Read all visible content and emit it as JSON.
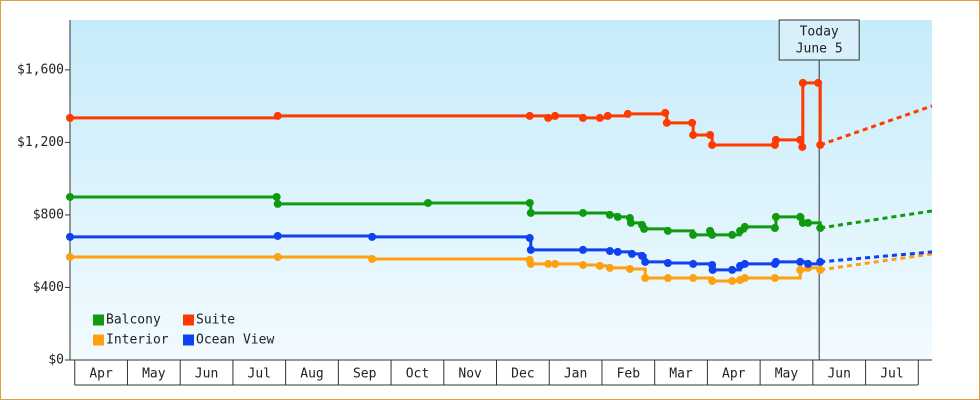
{
  "chart_data": {
    "type": "step-line",
    "xlim": [
      -0.09,
      16.26
    ],
    "ylim": [
      0,
      1875
    ],
    "yticks": [
      {
        "value": 0,
        "label": "$0"
      },
      {
        "value": 400,
        "label": "$400"
      },
      {
        "value": 800,
        "label": "$800"
      },
      {
        "value": 1200,
        "label": "$1,200"
      },
      {
        "value": 1600,
        "label": "$1,600"
      }
    ],
    "xticks": [
      {
        "value": 0.5,
        "label": "Apr"
      },
      {
        "value": 1.5,
        "label": "May"
      },
      {
        "value": 2.5,
        "label": "Jun"
      },
      {
        "value": 3.5,
        "label": "Jul"
      },
      {
        "value": 4.5,
        "label": "Aug"
      },
      {
        "value": 5.5,
        "label": "Sep"
      },
      {
        "value": 6.5,
        "label": "Oct"
      },
      {
        "value": 7.5,
        "label": "Nov"
      },
      {
        "value": 8.5,
        "label": "Dec"
      },
      {
        "value": 9.5,
        "label": "Jan"
      },
      {
        "value": 10.5,
        "label": "Feb"
      },
      {
        "value": 11.5,
        "label": "Mar"
      },
      {
        "value": 12.5,
        "label": "Apr"
      },
      {
        "value": 13.5,
        "label": "May"
      },
      {
        "value": 14.5,
        "label": "Jun"
      },
      {
        "value": 15.5,
        "label": "Jul"
      }
    ],
    "annotation": {
      "x": 14.12,
      "lines": [
        "Today",
        "June 5"
      ]
    },
    "series": [
      {
        "name": "Balcony",
        "color": "#109a10",
        "x": [
          -0.09,
          3.83,
          3.85,
          6.7,
          8.63,
          8.65,
          9.64,
          10.15,
          10.3,
          10.53,
          10.55,
          10.76,
          10.8,
          11.25,
          11.73,
          12.05,
          12.09,
          12.47,
          12.62,
          12.71,
          13.28,
          13.3,
          13.76,
          13.81,
          13.91,
          14.14
        ],
        "values": [
          899,
          899,
          861,
          866,
          866,
          811,
          811,
          800,
          789,
          783,
          756,
          745,
          723,
          712,
          690,
          712,
          690,
          690,
          712,
          734,
          728,
          789,
          789,
          756,
          756,
          728
        ],
        "projection_x": [
          14.14,
          16.26
        ],
        "projection_values": [
          728,
          822
        ]
      },
      {
        "name": "Suite",
        "color": "#ff3a00",
        "x": [
          -0.09,
          3.85,
          8.63,
          8.98,
          9.11,
          9.64,
          9.96,
          10.11,
          10.49,
          11.2,
          11.23,
          11.71,
          11.73,
          12.05,
          12.09,
          13.28,
          13.3,
          13.76,
          13.8,
          13.81,
          14.1,
          14.14
        ],
        "values": [
          1335,
          1346,
          1346,
          1335,
          1346,
          1335,
          1335,
          1346,
          1357,
          1363,
          1308,
          1308,
          1241,
          1241,
          1186,
          1186,
          1214,
          1214,
          1175,
          1528,
          1528,
          1186
        ],
        "projection_x": [
          14.14,
          16.26
        ],
        "projection_values": [
          1186,
          1401
        ]
      },
      {
        "name": "Interior",
        "color": "#ffa010",
        "x": [
          -0.09,
          3.85,
          5.64,
          8.63,
          8.65,
          8.98,
          9.11,
          9.64,
          9.96,
          10.15,
          10.53,
          10.82,
          11.25,
          11.73,
          12.09,
          12.47,
          12.62,
          12.71,
          13.28,
          13.76,
          13.91,
          14.14
        ],
        "values": [
          568,
          568,
          557,
          552,
          530,
          530,
          530,
          524,
          519,
          508,
          502,
          452,
          452,
          452,
          436,
          436,
          441,
          452,
          452,
          497,
          508,
          497
        ],
        "projection_x": [
          14.14,
          16.26
        ],
        "projection_values": [
          497,
          585
        ]
      },
      {
        "name": "Ocean View",
        "color": "#1040f0",
        "x": [
          -0.09,
          3.85,
          5.64,
          8.63,
          8.65,
          9.64,
          10.15,
          10.3,
          10.57,
          10.76,
          10.82,
          11.25,
          11.73,
          12.09,
          12.1,
          12.47,
          12.62,
          12.71,
          13.28,
          13.3,
          13.76,
          13.91,
          14.14
        ],
        "values": [
          679,
          684,
          679,
          673,
          607,
          607,
          601,
          596,
          585,
          574,
          541,
          535,
          530,
          524,
          497,
          497,
          519,
          530,
          530,
          541,
          541,
          530,
          541
        ],
        "projection_x": [
          14.14,
          16.26
        ],
        "projection_values": [
          541,
          596
        ]
      }
    ]
  }
}
